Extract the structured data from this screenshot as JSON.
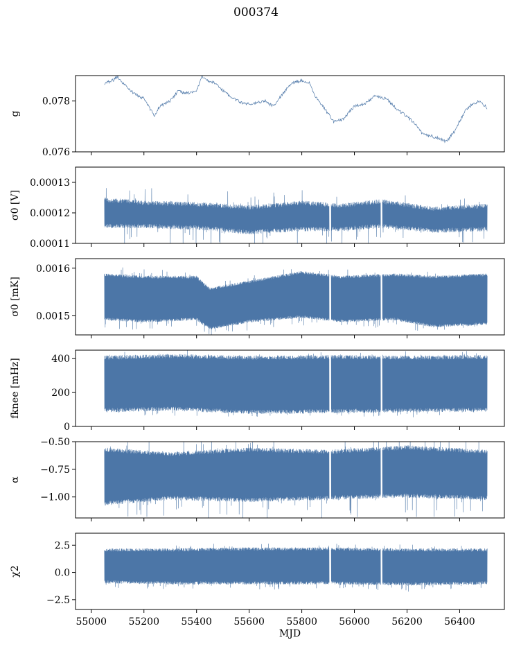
{
  "title": "000374",
  "colors": {
    "series": "#4c76a7",
    "axis": "#000000",
    "background": "#ffffff"
  },
  "chart_data": [
    {
      "type": "line",
      "ylabel": "g",
      "xlim": [
        54940,
        56570
      ],
      "ylim": [
        0.076,
        0.079
      ],
      "yticks": [
        0.076,
        0.078
      ],
      "ytick_labels": [
        "0.076",
        "0.078"
      ],
      "x_range": [
        55050,
        56505
      ],
      "band": false,
      "trend": [
        [
          55050,
          0.0787
        ],
        [
          55080,
          0.0788
        ],
        [
          55100,
          0.07895
        ],
        [
          55130,
          0.0786
        ],
        [
          55160,
          0.0783
        ],
        [
          55200,
          0.0781
        ],
        [
          55240,
          0.0774
        ],
        [
          55260,
          0.0778
        ],
        [
          55300,
          0.078
        ],
        [
          55330,
          0.0784
        ],
        [
          55360,
          0.0783
        ],
        [
          55400,
          0.0784
        ],
        [
          55420,
          0.079
        ],
        [
          55440,
          0.0788
        ],
        [
          55470,
          0.0787
        ],
        [
          55500,
          0.0784
        ],
        [
          55540,
          0.0781
        ],
        [
          55580,
          0.0779
        ],
        [
          55620,
          0.0779
        ],
        [
          55660,
          0.078
        ],
        [
          55690,
          0.0778
        ],
        [
          55730,
          0.0783
        ],
        [
          55760,
          0.0787
        ],
        [
          55800,
          0.0788
        ],
        [
          55830,
          0.0787
        ],
        [
          55850,
          0.0782
        ],
        [
          55880,
          0.0778
        ],
        [
          55920,
          0.0772
        ],
        [
          55960,
          0.0773
        ],
        [
          56000,
          0.0778
        ],
        [
          56040,
          0.0779
        ],
        [
          56080,
          0.0782
        ],
        [
          56120,
          0.0781
        ],
        [
          56150,
          0.0778
        ],
        [
          56170,
          0.0776
        ],
        [
          56200,
          0.0774
        ],
        [
          56230,
          0.0771
        ],
        [
          56260,
          0.0767
        ],
        [
          56300,
          0.0766
        ],
        [
          56330,
          0.0765
        ],
        [
          56350,
          0.0764
        ],
        [
          56380,
          0.0768
        ],
        [
          56420,
          0.0776
        ],
        [
          56450,
          0.0779
        ],
        [
          56480,
          0.078
        ],
        [
          56505,
          0.0777
        ]
      ],
      "noise": 6e-05
    },
    {
      "type": "line",
      "ylabel": "σ0 [V]",
      "xlim": [
        54940,
        56570
      ],
      "ylim": [
        0.00011,
        0.000135
      ],
      "yticks": [
        0.00011,
        0.00012,
        0.00013
      ],
      "ytick_labels": [
        "0.00011",
        "0.00012",
        "0.00013"
      ],
      "x_range": [
        55050,
        56505
      ],
      "band": true,
      "upper": [
        [
          55050,
          0.000124
        ],
        [
          55200,
          0.000123
        ],
        [
          55400,
          0.0001225
        ],
        [
          55600,
          0.0001215
        ],
        [
          55800,
          0.000123
        ],
        [
          55950,
          0.000122
        ],
        [
          56100,
          0.0001235
        ],
        [
          56300,
          0.000121
        ],
        [
          56505,
          0.000122
        ]
      ],
      "lower": [
        [
          55050,
          0.000116
        ],
        [
          55200,
          0.000116
        ],
        [
          55400,
          0.0001155
        ],
        [
          55600,
          0.000114
        ],
        [
          55800,
          0.000115
        ],
        [
          55950,
          0.000115
        ],
        [
          56100,
          0.000116
        ],
        [
          56300,
          0.0001145
        ],
        [
          56505,
          0.000115
        ]
      ],
      "jitter": 1.5e-06,
      "spike_depth": 6e-06,
      "gaps": [
        55908,
        56103
      ]
    },
    {
      "type": "line",
      "ylabel": "σ0 [mK]",
      "xlim": [
        54940,
        56570
      ],
      "ylim": [
        0.00146,
        0.00162
      ],
      "yticks": [
        0.0015,
        0.0016
      ],
      "ytick_labels": [
        "0.0015",
        "0.0016"
      ],
      "x_range": [
        55050,
        56505
      ],
      "band": true,
      "upper": [
        [
          55050,
          0.001585
        ],
        [
          55200,
          0.00158
        ],
        [
          55400,
          0.00158
        ],
        [
          55450,
          0.001555
        ],
        [
          55600,
          0.00157
        ],
        [
          55800,
          0.00159
        ],
        [
          55950,
          0.00158
        ],
        [
          56150,
          0.001585
        ],
        [
          56300,
          0.00158
        ],
        [
          56505,
          0.001585
        ]
      ],
      "lower": [
        [
          55050,
          0.001495
        ],
        [
          55200,
          0.00149
        ],
        [
          55400,
          0.001495
        ],
        [
          55450,
          0.001475
        ],
        [
          55600,
          0.00149
        ],
        [
          55800,
          0.0015
        ],
        [
          55950,
          0.00149
        ],
        [
          56150,
          0.001495
        ],
        [
          56300,
          0.00148
        ],
        [
          56505,
          0.001485
        ]
      ],
      "jitter": 6e-06,
      "spike_depth": 2e-05,
      "gaps": [
        55908,
        56103
      ]
    },
    {
      "type": "line",
      "ylabel": "fknee [mHz]",
      "xlim": [
        54940,
        56570
      ],
      "ylim": [
        0,
        450
      ],
      "yticks": [
        0,
        200,
        400
      ],
      "ytick_labels": [
        "0",
        "200",
        "400"
      ],
      "x_range": [
        55050,
        56505
      ],
      "band": true,
      "upper": [
        [
          55050,
          400
        ],
        [
          55300,
          410
        ],
        [
          55600,
          400
        ],
        [
          55900,
          405
        ],
        [
          56200,
          400
        ],
        [
          56505,
          405
        ]
      ],
      "lower": [
        [
          55050,
          100
        ],
        [
          55300,
          110
        ],
        [
          55600,
          90
        ],
        [
          55900,
          95
        ],
        [
          56200,
          100
        ],
        [
          56505,
          105
        ]
      ],
      "jitter": 25,
      "spike_depth": 40,
      "gaps": [
        55908,
        56103
      ]
    },
    {
      "type": "line",
      "ylabel": "α",
      "xlim": [
        54940,
        56570
      ],
      "ylim": [
        -1.19,
        -0.5
      ],
      "yticks": [
        -1.0,
        -0.75,
        -0.5
      ],
      "ytick_labels": [
        "−1.00",
        "−0.75",
        "−0.50"
      ],
      "x_range": [
        55050,
        56505
      ],
      "band": true,
      "upper": [
        [
          55050,
          -0.58
        ],
        [
          55300,
          -0.62
        ],
        [
          55600,
          -0.58
        ],
        [
          55900,
          -0.6
        ],
        [
          56200,
          -0.56
        ],
        [
          56505,
          -0.6
        ]
      ],
      "lower": [
        [
          55050,
          -1.05
        ],
        [
          55300,
          -1.0
        ],
        [
          55600,
          -1.02
        ],
        [
          55900,
          -1.0
        ],
        [
          56200,
          -0.98
        ],
        [
          56505,
          -1.0
        ]
      ],
      "jitter": 0.04,
      "spike_depth": 0.18,
      "gaps": [
        55908,
        56103
      ]
    },
    {
      "type": "line",
      "ylabel": "χ2",
      "xlabel": "MJD",
      "xlim": [
        54940,
        56570
      ],
      "ylim": [
        -3.4,
        3.6
      ],
      "yticks": [
        -2.5,
        0.0,
        2.5
      ],
      "ytick_labels": [
        "−2.5",
        "0.0",
        "2.5"
      ],
      "xticks": [
        55000,
        55200,
        55400,
        55600,
        55800,
        56000,
        56200,
        56400
      ],
      "xtick_labels": [
        "55000",
        "55200",
        "55400",
        "55600",
        "55800",
        "56000",
        "56200",
        "56400"
      ],
      "x_range": [
        55050,
        56505
      ],
      "band": true,
      "upper": [
        [
          55050,
          2.0
        ],
        [
          55300,
          2.0
        ],
        [
          55600,
          2.1
        ],
        [
          55900,
          2.1
        ],
        [
          56200,
          2.0
        ],
        [
          56505,
          2.0
        ]
      ],
      "lower": [
        [
          55050,
          -0.8
        ],
        [
          55300,
          -0.9
        ],
        [
          55600,
          -0.9
        ],
        [
          55900,
          -0.9
        ],
        [
          56200,
          -1.0
        ],
        [
          56505,
          -0.9
        ]
      ],
      "jitter": 0.3,
      "spike_depth": 0.6,
      "gaps": [
        55908,
        56103
      ]
    }
  ]
}
